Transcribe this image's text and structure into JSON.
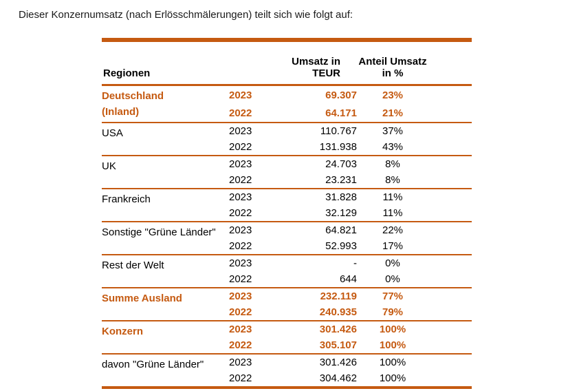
{
  "title": "Dieser Konzernumsatz (nach Erlösschmälerungen) teilt sich wie folgt auf:",
  "colors": {
    "accent_orange": "#C55A11",
    "text": "#000000"
  },
  "table": {
    "headers": {
      "region": "Regionen",
      "year": "",
      "umsatz": "Umsatz in TEUR",
      "anteil": "Anteil Umsatz in %"
    },
    "groups": [
      {
        "region": "Deutschland",
        "region2": "(Inland)",
        "highlighted": true,
        "rows": [
          {
            "year": "2023",
            "umsatz": "69.307",
            "anteil": "23%"
          },
          {
            "year": "2022",
            "umsatz": "64.171",
            "anteil": "21%"
          }
        ]
      },
      {
        "region": "USA",
        "highlighted": false,
        "rows": [
          {
            "year": "2023",
            "umsatz": "110.767",
            "anteil": "37%"
          },
          {
            "year": "2022",
            "umsatz": "131.938",
            "anteil": "43%"
          }
        ]
      },
      {
        "region": "UK",
        "highlighted": false,
        "rows": [
          {
            "year": "2023",
            "umsatz": "24.703",
            "anteil": "8%"
          },
          {
            "year": "2022",
            "umsatz": "23.231",
            "anteil": "8%"
          }
        ]
      },
      {
        "region": "Frankreich",
        "highlighted": false,
        "rows": [
          {
            "year": "2023",
            "umsatz": "31.828",
            "anteil": "11%"
          },
          {
            "year": "2022",
            "umsatz": "32.129",
            "anteil": "11%"
          }
        ]
      },
      {
        "region": "Sonstige \"Grüne Länder\"",
        "highlighted": false,
        "rows": [
          {
            "year": "2023",
            "umsatz": "64.821",
            "anteil": "22%"
          },
          {
            "year": "2022",
            "umsatz": "52.993",
            "anteil": "17%"
          }
        ]
      },
      {
        "region": "Rest der Welt",
        "highlighted": false,
        "rows": [
          {
            "year": "2023",
            "umsatz": "-",
            "anteil": "0%"
          },
          {
            "year": "2022",
            "umsatz": "644",
            "anteil": "0%"
          }
        ]
      },
      {
        "region": "Summe Ausland",
        "highlighted": true,
        "rows": [
          {
            "year": "2023",
            "umsatz": "232.119",
            "anteil": "77%"
          },
          {
            "year": "2022",
            "umsatz": "240.935",
            "anteil": "79%"
          }
        ]
      },
      {
        "region": "Konzern",
        "highlighted": true,
        "rows": [
          {
            "year": "2023",
            "umsatz": "301.426",
            "anteil": "100%"
          },
          {
            "year": "2022",
            "umsatz": "305.107",
            "anteil": "100%"
          }
        ]
      },
      {
        "region": "davon \"Grüne Länder\"",
        "highlighted": false,
        "rows": [
          {
            "year": "2023",
            "umsatz": "301.426",
            "anteil": "100%"
          },
          {
            "year": "2022",
            "umsatz": "304.462",
            "anteil": "100%"
          }
        ]
      }
    ]
  }
}
